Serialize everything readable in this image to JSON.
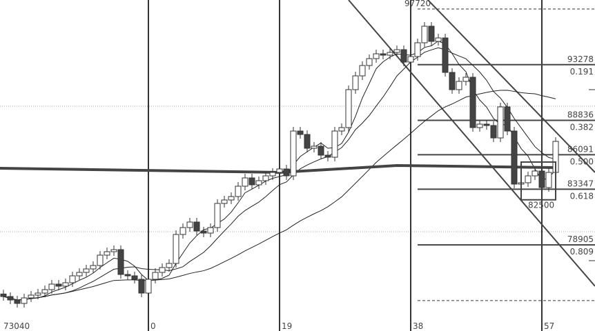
{
  "chart_data": {
    "type": "candlestick",
    "title": "",
    "colors": {
      "bull_fill": "#ffffff",
      "bear_fill": "#444444",
      "line": "#333333",
      "grid": "#aaaaaa"
    },
    "x_tick_labels": [
      {
        "bar": 0,
        "label": "73040"
      },
      {
        "bar": 21,
        "label": "0"
      },
      {
        "bar": 40,
        "label": "19"
      },
      {
        "bar": 59,
        "label": "38"
      },
      {
        "bar": 78,
        "label": "57"
      }
    ],
    "closes": [
      74785,
      74510,
      74235,
      74675,
      74895,
      75060,
      75335,
      75775,
      75610,
      75885,
      76435,
      76710,
      76985,
      77260,
      78085,
      78360,
      78525,
      76545,
      76435,
      76160,
      75060,
      76160,
      76710,
      77095,
      77425,
      79735,
      80285,
      80725,
      80010,
      79845,
      80285,
      82210,
      82485,
      82760,
      83585,
      84245,
      83695,
      84025,
      84410,
      84685,
      84960,
      84410,
      87985,
      87710,
      86610,
      86775,
      86060,
      85895,
      87985,
      88260,
      91285,
      92385,
      93210,
      93760,
      94145,
      94035,
      94255,
      94475,
      93485,
      93925,
      95025,
      96345,
      95135,
      95410,
      92660,
      91285,
      91945,
      92275,
      88260,
      88535,
      88425,
      87435,
      89910,
      87985,
      83750,
      83860,
      84410,
      84795,
      83475,
      84685,
      87160
    ],
    "long_ma": [
      {
        "bar": 0,
        "price": 85015
      },
      {
        "bar": 40,
        "price": 84685
      },
      {
        "bar": 57,
        "price": 85235
      },
      {
        "bar": 80,
        "price": 85070
      }
    ],
    "high_label": "97720",
    "high_price": 97720,
    "fib_levels": [
      {
        "price": 93278,
        "ratio": "0.191"
      },
      {
        "price": 88836,
        "ratio": "0.382"
      },
      {
        "price": 86091,
        "ratio": "0.500"
      },
      {
        "price": 83347,
        "ratio": "0.618"
      },
      {
        "price": 78905,
        "ratio": "0.809"
      }
    ],
    "fib_low_price": 74463,
    "box_label": "82500",
    "box_low_price": 82500
  }
}
